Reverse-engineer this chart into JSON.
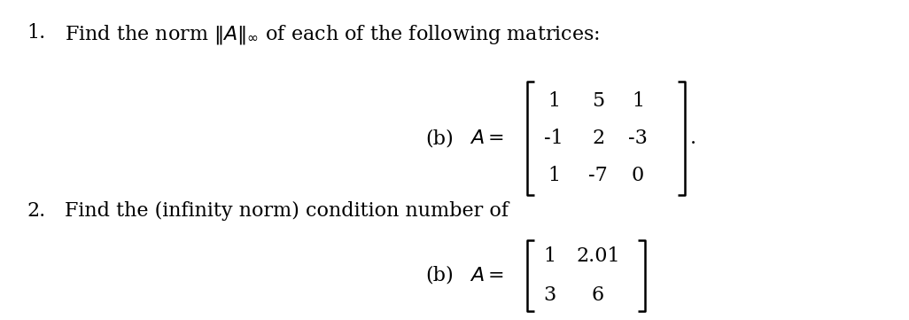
{
  "bg_color": "#ffffff",
  "text_color": "#000000",
  "figsize": [
    10.26,
    3.61
  ],
  "dpi": 100,
  "matrix1_rows": [
    [
      "1",
      "5",
      "1"
    ],
    [
      "-1",
      "2",
      "-3"
    ],
    [
      "1",
      "-7",
      "0"
    ]
  ],
  "matrix2_rows": [
    [
      "1",
      "2.01"
    ],
    [
      "3",
      "6"
    ]
  ]
}
